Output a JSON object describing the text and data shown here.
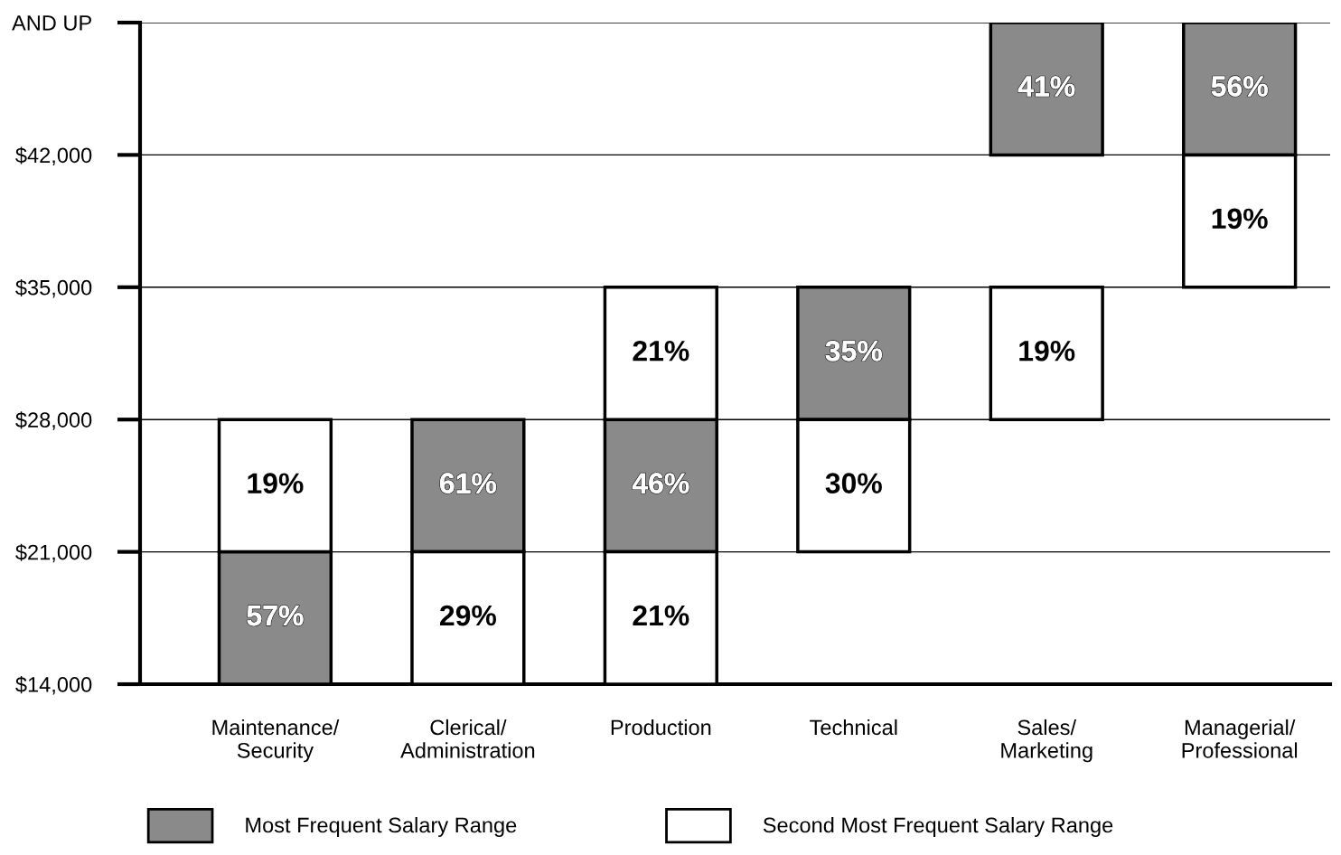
{
  "chart_data": {
    "type": "bar",
    "categories": [
      "Maintenance/\nSecurity",
      "Clerical/\nAdministration",
      "Production",
      "Technical",
      "Sales/\nMarketing",
      "Managerial/\nProfessional"
    ],
    "series": [
      {
        "name": "Most Frequent Salary Range",
        "color": "#8a8a8a",
        "base": [
          14000,
          21000,
          21000,
          28000,
          42000,
          42000
        ],
        "values": [
          7000,
          7000,
          7000,
          7000,
          7000,
          7000
        ]
      },
      {
        "name": "Second Most Frequent Salary Range",
        "color": "#ffffff",
        "base": [
          21000,
          14000,
          14000,
          21000,
          28000,
          35000
        ],
        "values": [
          7000,
          7000,
          7000,
          7000,
          7000,
          7000
        ]
      },
      {
        "color": "#ffffff",
        "base": [
          null,
          null,
          28000,
          null,
          null,
          null
        ],
        "values": [
          null,
          null,
          7000,
          null,
          null,
          null
        ]
      }
    ],
    "annotations": [
      {
        "text": "57%",
        "x": "Maintenance/\nSecurity",
        "y": 21000
      },
      {
        "text": "19%",
        "x": "Maintenance/\nSecurity",
        "y": 28000
      },
      {
        "text": "61%",
        "x": "Clerical/\nAdministration",
        "y": 28000
      },
      {
        "text": "29%",
        "x": "Clerical/\nAdministration",
        "y": 21000
      },
      {
        "text": "46%",
        "x": "Production",
        "y": 28000
      },
      {
        "text": "21%",
        "x": "Production",
        "y": 21000
      },
      {
        "text": "21%",
        "x": "Production",
        "y": 35000
      },
      {
        "text": "35%",
        "x": "Technical",
        "y": 35000
      },
      {
        "text": "30%",
        "x": "Technical",
        "y": 28000
      },
      {
        "text": "41%",
        "x": "Sales/\nMarketing",
        "y": 49000
      },
      {
        "text": "19%",
        "x": "Sales/\nMarketing",
        "y": 35000
      },
      {
        "text": "56%",
        "x": "Managerial/\nProfessional",
        "y": 49000
      },
      {
        "text": "19%",
        "x": "Managerial/\nProfessional",
        "y": 42000
      }
    ],
    "ylim": [
      14000,
      49000
    ],
    "yticks": [
      {
        "value": 14000,
        "label": "$14,000"
      },
      {
        "value": 21000,
        "label": "$21,000"
      },
      {
        "value": 28000,
        "label": "$28,000"
      },
      {
        "value": 35000,
        "label": "$35,000"
      },
      {
        "value": 42000,
        "label": "$42,000"
      },
      {
        "value": 49000,
        "label": "AND UP"
      }
    ],
    "grid": "y",
    "legend": "bottom"
  }
}
